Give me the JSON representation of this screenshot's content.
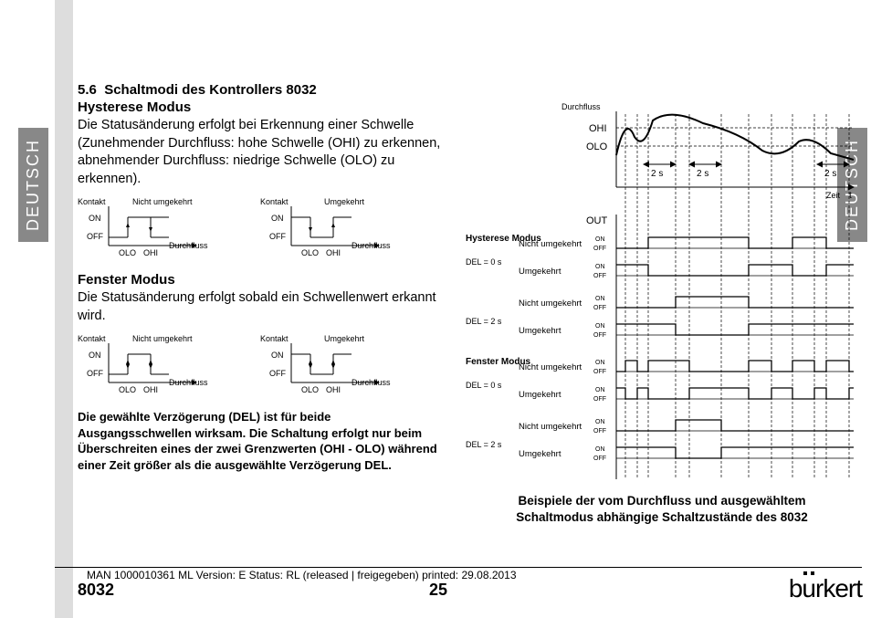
{
  "sideTab": "DEUTSCH",
  "section": {
    "number": "5.6",
    "title": "Schaltmodi des Kontrollers 8032",
    "hyst": {
      "heading": "Hysterese Modus",
      "text": "Die Statusänderung erfolgt bei Erkennung einer Schwelle (Zunehmender Durchfluss: hohe Schwelle (OHI) zu erkennen, abnehmender Durchfluss: niedrige Schwelle (OLO) zu erkennen)."
    },
    "fenster": {
      "heading": "Fenster Modus",
      "text": "Die Statusänderung erfolgt sobald ein Schwellenwert erkannt wird."
    },
    "note": "Die gewählte Verzögerung (DEL) ist für beide Ausgangsschwellen wirksam. Die Schaltung erfolgt nur beim Überschreiten eines der zwei Grenzwerten (OHI - OLO) während einer Zeit größer als die ausgewählte Verzögerung DEL."
  },
  "mini": {
    "kontakt": "Kontakt",
    "on": "ON",
    "off": "OFF",
    "olo": "OLO",
    "ohi": "OHI",
    "durchfluss": "Durchfluss",
    "nichtUmg": "Nicht umgekehrt",
    "umg": "Umgekehrt"
  },
  "rightFig": {
    "durchfluss": "Durchfluss",
    "ohi": "OHI",
    "olo": "OLO",
    "zeit": "Zeit",
    "t": "t",
    "twoS": "2 s",
    "out": "OUT",
    "hystModus": "Hysterese Modus",
    "fensterModus": "Fenster Modus",
    "nichtUmg": "Nicht umgekehrt",
    "umg": "Umgekehrt",
    "del0": "DEL = 0 s",
    "del2": "DEL = 2 s",
    "on": "ON",
    "off": "OFF"
  },
  "caption": "Beispiele der vom Durchfluss und ausgewähltem Schaltmodus abhängige Schaltzustände des 8032",
  "footer": {
    "meta": "MAN  1000010361  ML  Version: E Status: RL (released | freigegeben)  printed: 29.08.2013",
    "model": "8032",
    "page": "25",
    "brand": "burkert"
  }
}
